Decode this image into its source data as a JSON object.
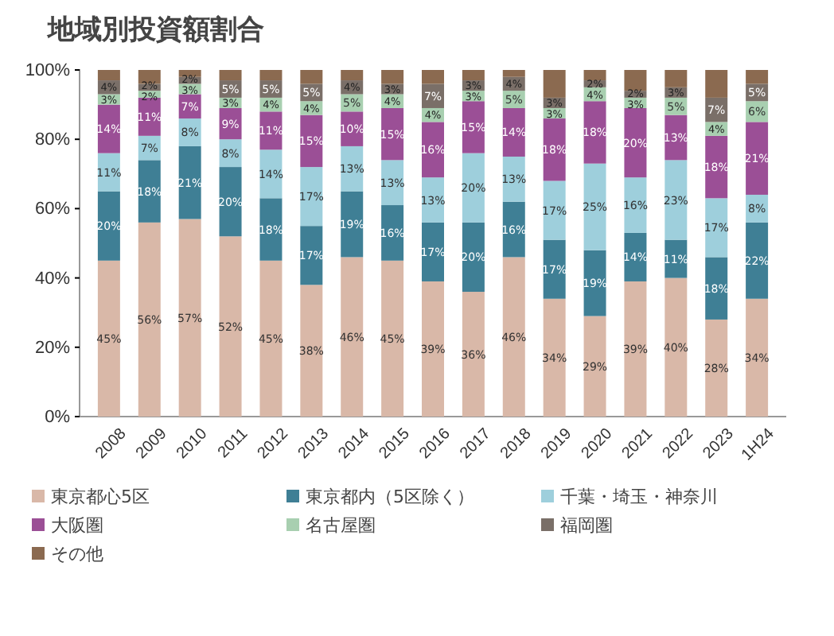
{
  "chart_data": {
    "type": "bar",
    "stacked": true,
    "title": "地域別投資額割合",
    "categories": [
      "2008",
      "2009",
      "2010",
      "2011",
      "2012",
      "2013",
      "2014",
      "2015",
      "2016",
      "2017",
      "2018",
      "2019",
      "2020",
      "2021",
      "2022",
      "2023",
      "1H24"
    ],
    "ylim": [
      0,
      100
    ],
    "yticks": [
      {
        "value": 0,
        "label": "0%"
      },
      {
        "value": 20,
        "label": "20%"
      },
      {
        "value": 40,
        "label": "40%"
      },
      {
        "value": 60,
        "label": "60%"
      },
      {
        "value": 80,
        "label": "80%"
      },
      {
        "value": 100,
        "label": "100%"
      }
    ],
    "legend": "bottom",
    "series": [
      {
        "name": "東京都心5区",
        "color": "#d9b8a8",
        "values": [
          45,
          56,
          57,
          52,
          45,
          38,
          46,
          45,
          39,
          36,
          46,
          34,
          29,
          39,
          40,
          28,
          34
        ],
        "value_labels": [
          "45%",
          "56%",
          "57%",
          "52%",
          "45%",
          "38%",
          "46%",
          "45%",
          "39%",
          "36%",
          "46%",
          "34%",
          "29%",
          "39%",
          "40%",
          "28%",
          "34%"
        ]
      },
      {
        "name": "東京都内（5区除く）",
        "color": "#3f7f95",
        "values": [
          20,
          18,
          21,
          20,
          18,
          17,
          19,
          16,
          17,
          20,
          16,
          17,
          19,
          14,
          11,
          18,
          22
        ],
        "value_labels": [
          "20%",
          "18%",
          "21%",
          "20%",
          "18%",
          "17%",
          "19%",
          "16%",
          "17%",
          "20%",
          "16%",
          "17%",
          "19%",
          "14%",
          "11%",
          "18%",
          "22%"
        ]
      },
      {
        "name": "千葉・埼玉・神奈川",
        "color": "#9ecfdc",
        "values": [
          11,
          7,
          8,
          8,
          14,
          17,
          13,
          13,
          13,
          20,
          13,
          17,
          25,
          16,
          23,
          17,
          8
        ],
        "value_labels": [
          "11%",
          "7%",
          "8%",
          "8%",
          "14%",
          "17%",
          "13%",
          "13%",
          "13%",
          "20%",
          "13%",
          "17%",
          "25%",
          "16%",
          "23%",
          "17%",
          "8%"
        ]
      },
      {
        "name": "大阪圏",
        "color": "#9b4f96",
        "values": [
          14,
          11,
          7,
          9,
          11,
          15,
          10,
          15,
          16,
          15,
          14,
          18,
          18,
          20,
          13,
          18,
          21
        ],
        "value_labels": [
          "14%",
          "11%",
          "7%",
          "9%",
          "11%",
          "15%",
          "10%",
          "15%",
          "16%",
          "15%",
          "14%",
          "18%",
          "18%",
          "20%",
          "13%",
          "18%",
          "21%"
        ]
      },
      {
        "name": "名古屋圏",
        "color": "#a8cfb0",
        "values": [
          3,
          2,
          3,
          3,
          4,
          4,
          5,
          4,
          4,
          3,
          5,
          3,
          4,
          3,
          5,
          4,
          6
        ],
        "value_labels": [
          "3%",
          "2%",
          "3%",
          "3%",
          "4%",
          "4%",
          "5%",
          "4%",
          "4%",
          "3%",
          "5%",
          "3%",
          "4%",
          "3%",
          "5%",
          "4%",
          "6%"
        ]
      },
      {
        "name": "福岡圏",
        "color": "#7a6f68",
        "values": [
          4,
          2,
          2,
          5,
          5,
          5,
          4,
          3,
          7,
          3,
          4,
          3,
          2,
          2,
          3,
          7,
          5
        ],
        "value_labels": [
          "4%",
          "2%",
          "2%",
          "5%",
          "5%",
          "5%",
          "4%",
          "3%",
          "7%",
          "3%",
          "4%",
          "3%",
          "2%",
          "2%",
          "3%",
          "7%",
          "5%"
        ]
      },
      {
        "name": "その他",
        "color": "#8b6a50",
        "values": [
          3,
          4,
          2,
          3,
          3,
          4,
          3,
          4,
          4,
          3,
          2,
          8,
          3,
          6,
          5,
          8,
          4
        ]
      }
    ]
  }
}
